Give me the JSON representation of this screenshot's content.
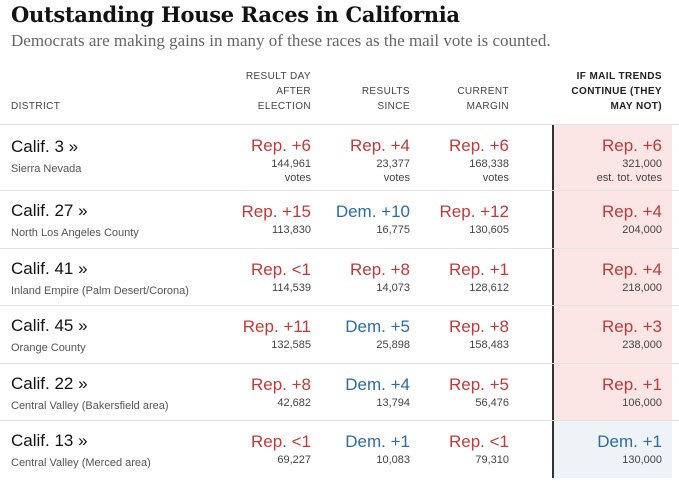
{
  "title": "Outstanding House Races in California",
  "subtitle": "Democrats are making gains in many of these races as the mail vote is counted.",
  "columns": {
    "district": "DISTRICT",
    "result_day_after": [
      "RESULT DAY",
      "AFTER",
      "ELECTION"
    ],
    "results_since": [
      "RESULTS",
      "SINCE"
    ],
    "current_margin": [
      "CURRENT",
      "MARGIN"
    ],
    "if_mail_trends": [
      "IF MAIL TRENDS",
      "CONTINUE (THEY",
      "MAY NOT)"
    ]
  },
  "colors": {
    "rep": "#bf3b3b",
    "dem": "#2e6ba8",
    "rep_highlight": "#fbe5e5",
    "dem_highlight": "#eef3f8"
  },
  "rows": [
    {
      "district": "Calif. 3 »",
      "area": "Sierra Nevada",
      "day_after": {
        "margin": "Rep. +6",
        "party": "rep",
        "votes": "144,961",
        "votes_label": "votes"
      },
      "since": {
        "margin": "Rep. +4",
        "party": "rep",
        "votes": "23,377",
        "votes_label": "votes"
      },
      "current": {
        "margin": "Rep. +6",
        "party": "rep",
        "votes": "168,338",
        "votes_label": "votes"
      },
      "projected": {
        "margin": "Rep. +6",
        "party": "rep",
        "votes": "321,000",
        "votes_label": "est. tot. votes"
      }
    },
    {
      "district": "Calif. 27 »",
      "area": "North Los Angeles County",
      "day_after": {
        "margin": "Rep. +15",
        "party": "rep",
        "votes": "113,830"
      },
      "since": {
        "margin": "Dem. +10",
        "party": "dem",
        "votes": "16,775"
      },
      "current": {
        "margin": "Rep. +12",
        "party": "rep",
        "votes": "130,605"
      },
      "projected": {
        "margin": "Rep. +4",
        "party": "rep",
        "votes": "204,000"
      }
    },
    {
      "district": "Calif. 41 »",
      "area": "Inland Empire (Palm Desert/Corona)",
      "day_after": {
        "margin": "Rep. <1",
        "party": "rep",
        "votes": "114,539"
      },
      "since": {
        "margin": "Rep. +8",
        "party": "rep",
        "votes": "14,073"
      },
      "current": {
        "margin": "Rep. +1",
        "party": "rep",
        "votes": "128,612"
      },
      "projected": {
        "margin": "Rep. +4",
        "party": "rep",
        "votes": "218,000"
      }
    },
    {
      "district": "Calif. 45 »",
      "area": "Orange County",
      "day_after": {
        "margin": "Rep. +11",
        "party": "rep",
        "votes": "132,585"
      },
      "since": {
        "margin": "Dem. +5",
        "party": "dem",
        "votes": "25,898"
      },
      "current": {
        "margin": "Rep. +8",
        "party": "rep",
        "votes": "158,483"
      },
      "projected": {
        "margin": "Rep. +3",
        "party": "rep",
        "votes": "238,000"
      }
    },
    {
      "district": "Calif. 22 »",
      "area": "Central Valley (Bakersfield area)",
      "day_after": {
        "margin": "Rep. +8",
        "party": "rep",
        "votes": "42,682"
      },
      "since": {
        "margin": "Dem. +4",
        "party": "dem",
        "votes": "13,794"
      },
      "current": {
        "margin": "Rep. +5",
        "party": "rep",
        "votes": "56,476"
      },
      "projected": {
        "margin": "Rep. +1",
        "party": "rep",
        "votes": "106,000"
      }
    },
    {
      "district": "Calif. 13 »",
      "area": "Central Valley (Merced area)",
      "day_after": {
        "margin": "Rep. <1",
        "party": "rep",
        "votes": "69,227"
      },
      "since": {
        "margin": "Dem. +1",
        "party": "dem",
        "votes": "10,083"
      },
      "current": {
        "margin": "Rep. <1",
        "party": "rep",
        "votes": "79,310"
      },
      "projected": {
        "margin": "Dem. +1",
        "party": "dem",
        "votes": "130,000"
      }
    }
  ]
}
